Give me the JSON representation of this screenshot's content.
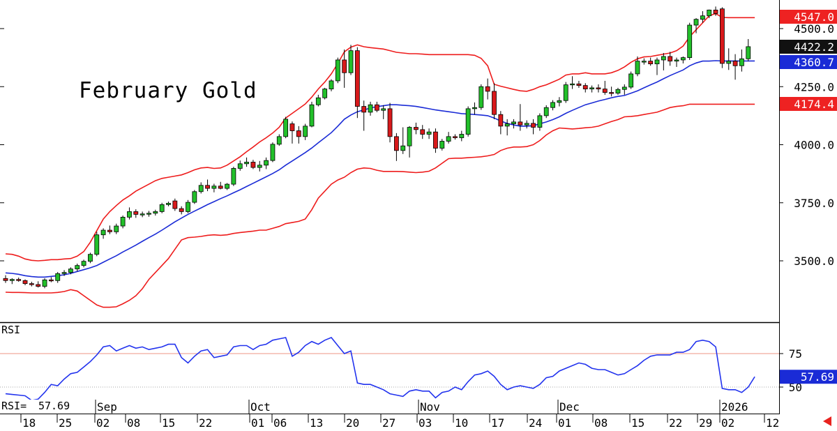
{
  "title": "February Gold",
  "rsi_label": "RSI",
  "rsi_readout_label": "RSI=",
  "rsi_readout_value": "57.69",
  "colors": {
    "up": "#22c02a",
    "down": "#d8191b",
    "band": "#ee1c1c",
    "mid": "#1a2bd6",
    "rsi": "#2233ee",
    "badge_red": "#ee2222",
    "badge_black": "#111111",
    "badge_blue": "#1a2bd6"
  },
  "nav_icon": "scroll-left-arrow-icon",
  "chart_data": [
    {
      "type": "candlestick",
      "title": "February Gold",
      "y_axis": {
        "ticks": [
          "4500.0",
          "4250.0",
          "4000.0",
          "3750.0",
          "3500.0"
        ],
        "ylim": [
          3250,
          4600
        ]
      },
      "last_values": [
        {
          "label": "4547.0",
          "role": "upper-band",
          "value": 4547.0
        },
        {
          "label": "4422.2",
          "role": "last-price",
          "value": 4422.2
        },
        {
          "label": "4360.7",
          "role": "middle-band",
          "value": 4360.7
        },
        {
          "label": "4174.4",
          "role": "lower-band",
          "value": 4174.4
        }
      ],
      "candles": [
        [
          3424,
          3438,
          3405,
          3415
        ],
        [
          3415,
          3425,
          3400,
          3420
        ],
        [
          3420,
          3428,
          3410,
          3415
        ],
        [
          3415,
          3420,
          3395,
          3402
        ],
        [
          3402,
          3410,
          3390,
          3398
        ],
        [
          3398,
          3412,
          3385,
          3390
        ],
        [
          3390,
          3425,
          3382,
          3418
        ],
        [
          3418,
          3430,
          3408,
          3415
        ],
        [
          3415,
          3452,
          3405,
          3445
        ],
        [
          3445,
          3460,
          3435,
          3450
        ],
        [
          3450,
          3472,
          3442,
          3465
        ],
        [
          3465,
          3488,
          3455,
          3480
        ],
        [
          3480,
          3505,
          3472,
          3498
        ],
        [
          3498,
          3535,
          3490,
          3528
        ],
        [
          3528,
          3625,
          3520,
          3612
        ],
        [
          3612,
          3640,
          3595,
          3632
        ],
        [
          3632,
          3652,
          3615,
          3625
        ],
        [
          3625,
          3660,
          3615,
          3650
        ],
        [
          3650,
          3695,
          3640,
          3688
        ],
        [
          3688,
          3730,
          3678,
          3712
        ],
        [
          3712,
          3722,
          3685,
          3700
        ],
        [
          3700,
          3712,
          3688,
          3702
        ],
        [
          3702,
          3715,
          3690,
          3705
        ],
        [
          3705,
          3720,
          3695,
          3712
        ],
        [
          3712,
          3750,
          3705,
          3742
        ],
        [
          3742,
          3755,
          3735,
          3748
        ],
        [
          3758,
          3768,
          3715,
          3725
        ],
        [
          3725,
          3735,
          3700,
          3712
        ],
        [
          3712,
          3762,
          3705,
          3752
        ],
        [
          3752,
          3805,
          3745,
          3798
        ],
        [
          3798,
          3838,
          3790,
          3825
        ],
        [
          3825,
          3850,
          3800,
          3812
        ],
        [
          3812,
          3832,
          3795,
          3822
        ],
        [
          3822,
          3840,
          3808,
          3812
        ],
        [
          3812,
          3835,
          3805,
          3830
        ],
        [
          3830,
          3905,
          3822,
          3898
        ],
        [
          3898,
          3932,
          3888,
          3918
        ],
        [
          3918,
          3945,
          3905,
          3925
        ],
        [
          3925,
          3935,
          3895,
          3902
        ],
        [
          3902,
          3930,
          3885,
          3912
        ],
        [
          3912,
          3945,
          3895,
          3932
        ],
        [
          3932,
          4010,
          3925,
          4002
        ],
        [
          4002,
          4045,
          3995,
          4035
        ],
        [
          4035,
          4120,
          4028,
          4110
        ],
        [
          4090,
          4100,
          4005,
          4060
        ],
        [
          4060,
          4080,
          4005,
          4035
        ],
        [
          4035,
          4090,
          4020,
          4080
        ],
        [
          4080,
          4185,
          4075,
          4172
        ],
        [
          4172,
          4215,
          4165,
          4202
        ],
        [
          4202,
          4245,
          4195,
          4240
        ],
        [
          4240,
          4282,
          4230,
          4275
        ],
        [
          4275,
          4375,
          4265,
          4365
        ],
        [
          4365,
          4410,
          4245,
          4310
        ],
        [
          4310,
          4430,
          4300,
          4405
        ],
        [
          4405,
          4420,
          4115,
          4165
        ],
        [
          4165,
          4190,
          4060,
          4140
        ],
        [
          4140,
          4185,
          4125,
          4172
        ],
        [
          4172,
          4185,
          4140,
          4148
        ],
        [
          4148,
          4170,
          4110,
          4155
        ],
        [
          4155,
          4180,
          4010,
          4035
        ],
        [
          4035,
          4050,
          3930,
          3975
        ],
        [
          3975,
          4075,
          3960,
          3995
        ],
        [
          3995,
          4080,
          3945,
          4075
        ],
        [
          4075,
          4095,
          4045,
          4065
        ],
        [
          4065,
          4085,
          4025,
          4045
        ],
        [
          4045,
          4070,
          4025,
          4055
        ],
        [
          4055,
          4070,
          3965,
          3985
        ],
        [
          3985,
          4025,
          3975,
          4015
        ],
        [
          4015,
          4055,
          4005,
          4035
        ],
        [
          4035,
          4045,
          4022,
          4030
        ],
        [
          4030,
          4060,
          4015,
          4045
        ],
        [
          4045,
          4165,
          4035,
          4155
        ],
        [
          4155,
          4182,
          4130,
          4160
        ],
        [
          4160,
          4260,
          4150,
          4250
        ],
        [
          4250,
          4285,
          4195,
          4230
        ],
        [
          4230,
          4265,
          4110,
          4130
        ],
        [
          4130,
          4145,
          4045,
          4080
        ],
        [
          4080,
          4110,
          4040,
          4090
        ],
        [
          4090,
          4110,
          4070,
          4098
        ],
        [
          4098,
          4175,
          4060,
          4085
        ],
        [
          4085,
          4105,
          4070,
          4092
        ],
        [
          4092,
          4110,
          4045,
          4075
        ],
        [
          4075,
          4135,
          4060,
          4125
        ],
        [
          4125,
          4170,
          4115,
          4160
        ],
        [
          4160,
          4192,
          4148,
          4182
        ],
        [
          4182,
          4205,
          4165,
          4190
        ],
        [
          4190,
          4270,
          4180,
          4258
        ],
        [
          4258,
          4295,
          4240,
          4262
        ],
        [
          4262,
          4275,
          4245,
          4255
        ],
        [
          4255,
          4265,
          4225,
          4240
        ],
        [
          4240,
          4255,
          4225,
          4245
        ],
        [
          4245,
          4260,
          4225,
          4240
        ],
        [
          4240,
          4275,
          4215,
          4225
        ],
        [
          4225,
          4250,
          4208,
          4222
        ],
        [
          4222,
          4245,
          4215,
          4238
        ],
        [
          4238,
          4260,
          4215,
          4248
        ],
        [
          4248,
          4315,
          4240,
          4305
        ],
        [
          4305,
          4380,
          4295,
          4360
        ],
        [
          4360,
          4372,
          4345,
          4360
        ],
        [
          4360,
          4375,
          4340,
          4348
        ],
        [
          4348,
          4375,
          4300,
          4365
        ],
        [
          4365,
          4395,
          4320,
          4380
        ],
        [
          4380,
          4400,
          4340,
          4360
        ],
        [
          4360,
          4375,
          4335,
          4365
        ],
        [
          4365,
          4380,
          4350,
          4375
        ],
        [
          4375,
          4525,
          4365,
          4515
        ],
        [
          4515,
          4545,
          4480,
          4540
        ],
        [
          4540,
          4575,
          4525,
          4555
        ],
        [
          4555,
          4582,
          4545,
          4580
        ],
        [
          4580,
          4595,
          4555,
          4565
        ],
        [
          4585,
          4592,
          4330,
          4350
        ],
        [
          4350,
          4415,
          4322,
          4360
        ],
        [
          4360,
          4390,
          4280,
          4340
        ],
        [
          4340,
          4410,
          4315,
          4370
        ],
        [
          4370,
          4455,
          4360,
          4422.2
        ]
      ],
      "bollinger_upper": [
        3530,
        3528,
        3520,
        3508,
        3502,
        3500,
        3502,
        3505,
        3505,
        3508,
        3510,
        3520,
        3540,
        3580,
        3630,
        3680,
        3712,
        3738,
        3762,
        3780,
        3800,
        3815,
        3830,
        3845,
        3855,
        3860,
        3865,
        3870,
        3880,
        3892,
        3900,
        3902,
        3898,
        3900,
        3912,
        3930,
        3948,
        3970,
        3990,
        4012,
        4030,
        4050,
        4075,
        4115,
        4135,
        4155,
        4175,
        4205,
        4240,
        4270,
        4305,
        4350,
        4400,
        4420,
        4430,
        4422,
        4418,
        4415,
        4412,
        4405,
        4398,
        4395,
        4392,
        4392,
        4390,
        4388,
        4388,
        4388,
        4388,
        4388,
        4388,
        4388,
        4385,
        4372,
        4340,
        4260,
        4252,
        4245,
        4238,
        4232,
        4230,
        4238,
        4250,
        4258,
        4270,
        4282,
        4300,
        4305,
        4305,
        4310,
        4305,
        4305,
        4305,
        4310,
        4320,
        4335,
        4355,
        4370,
        4378,
        4380,
        4385,
        4390,
        4395,
        4405,
        4425,
        4465,
        4495,
        4525,
        4555,
        4565,
        4548,
        4547,
        4547,
        4547,
        4547,
        4547
      ],
      "bollinger_mid": [
        3448,
        3446,
        3442,
        3436,
        3432,
        3430,
        3430,
        3433,
        3436,
        3440,
        3446,
        3454,
        3462,
        3470,
        3480,
        3494,
        3508,
        3522,
        3538,
        3553,
        3568,
        3584,
        3600,
        3615,
        3632,
        3650,
        3668,
        3684,
        3700,
        3714,
        3728,
        3742,
        3755,
        3768,
        3780,
        3793,
        3806,
        3820,
        3834,
        3848,
        3862,
        3876,
        3892,
        3912,
        3930,
        3948,
        3966,
        3986,
        4008,
        4030,
        4052,
        4080,
        4110,
        4128,
        4142,
        4150,
        4158,
        4164,
        4168,
        4172,
        4172,
        4170,
        4168,
        4165,
        4160,
        4155,
        4150,
        4146,
        4142,
        4138,
        4134,
        4132,
        4130,
        4128,
        4125,
        4115,
        4102,
        4092,
        4085,
        4080,
        4080,
        4082,
        4090,
        4098,
        4108,
        4120,
        4135,
        4148,
        4160,
        4172,
        4180,
        4188,
        4195,
        4202,
        4208,
        4212,
        4222,
        4232,
        4245,
        4258,
        4270,
        4284,
        4298,
        4310,
        4322,
        4340,
        4352,
        4360,
        4360,
        4362,
        4360.7,
        4360.7,
        4360.7,
        4360.7,
        4360.7,
        4360.7
      ],
      "bollinger_lower": [
        3365,
        3364,
        3364,
        3363,
        3362,
        3362,
        3362,
        3362,
        3364,
        3368,
        3376,
        3370,
        3350,
        3330,
        3310,
        3300,
        3300,
        3302,
        3315,
        3330,
        3350,
        3380,
        3420,
        3450,
        3480,
        3510,
        3550,
        3590,
        3600,
        3602,
        3605,
        3610,
        3612,
        3610,
        3612,
        3618,
        3622,
        3625,
        3628,
        3632,
        3632,
        3640,
        3648,
        3660,
        3665,
        3670,
        3680,
        3720,
        3770,
        3800,
        3830,
        3848,
        3860,
        3880,
        3895,
        3900,
        3898,
        3890,
        3885,
        3885,
        3885,
        3884,
        3882,
        3880,
        3882,
        3886,
        3900,
        3920,
        3940,
        3942,
        3942,
        3944,
        3946,
        3948,
        3952,
        3958,
        3975,
        3985,
        3990,
        3990,
        3992,
        4000,
        4018,
        4042,
        4060,
        4072,
        4070,
        4068,
        4070,
        4073,
        4075,
        4080,
        4090,
        4100,
        4108,
        4120,
        4122,
        4125,
        4130,
        4135,
        4140,
        4150,
        4160,
        4165,
        4168,
        4174.4,
        4174.4,
        4174.4,
        4174.4,
        4174.4,
        4174.4,
        4174.4,
        4174.4,
        4174.4,
        4174.4,
        4174.4
      ]
    },
    {
      "type": "line",
      "title": "RSI",
      "y_axis": {
        "ticks": [
          "75",
          "50"
        ],
        "ylim": [
          40,
          95
        ],
        "reference_lines": [
          75,
          50
        ]
      },
      "last_label": "57.69",
      "last_value": 57.69,
      "values": [
        45,
        44.5,
        44,
        43.5,
        40,
        41,
        46,
        52,
        51,
        56,
        60,
        61,
        65,
        69,
        74,
        80,
        81,
        77,
        79,
        81,
        79,
        80,
        78,
        79,
        80,
        82,
        82,
        72,
        68,
        73,
        77,
        78,
        72,
        73,
        74,
        80,
        81,
        81,
        78,
        81,
        82,
        85,
        86,
        87,
        73,
        76,
        81,
        84,
        82,
        85,
        87,
        81,
        75,
        77,
        53,
        52,
        52,
        50,
        48,
        45,
        44,
        43,
        47,
        48,
        47,
        47,
        42,
        46,
        47,
        50,
        48,
        54,
        59,
        60,
        62,
        58,
        52,
        48,
        50,
        51,
        50,
        49,
        52,
        57,
        58,
        62,
        64,
        66,
        68,
        67,
        64,
        63,
        63,
        61,
        59,
        60,
        63,
        66,
        70,
        73,
        74,
        74,
        74,
        76,
        76,
        78,
        84,
        85,
        84,
        80,
        49,
        48,
        48,
        46,
        50,
        57.69
      ]
    }
  ],
  "x_axis": {
    "months": [
      "Sep",
      "Oct",
      "Nov",
      "Dec",
      "2026"
    ],
    "days": [
      "18",
      "25",
      "02",
      "08",
      "15",
      "22",
      "01",
      "06",
      "13",
      "20",
      "27",
      "03",
      "10",
      "17",
      "24",
      "01",
      "08",
      "15",
      "22",
      "29",
      "02",
      "12"
    ]
  }
}
